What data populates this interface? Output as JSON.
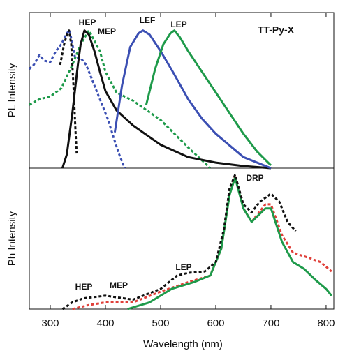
{
  "chart_data": [
    {
      "type": "line",
      "title": "TT-Py-X",
      "ylabel": "PL Intensity",
      "xlim": [
        262,
        814
      ],
      "ylim": [
        0,
        1.13
      ],
      "annotations": [
        "HEP",
        "MEP",
        "LEF",
        "LEP"
      ],
      "series": [
        {
          "color": "#3b4fb3",
          "dash": true,
          "x": [
            262,
            270,
            280,
            290,
            300,
            310,
            320,
            330,
            335,
            345,
            355,
            365,
            375,
            385,
            395,
            405,
            415,
            425,
            435
          ],
          "values": [
            0.72,
            0.75,
            0.82,
            0.78,
            0.77,
            0.85,
            0.9,
            0.98,
            1.0,
            0.8,
            0.8,
            0.75,
            0.65,
            0.55,
            0.45,
            0.35,
            0.22,
            0.1,
            0
          ]
        },
        {
          "color": "#1e9a4a",
          "dash": true,
          "x": [
            262,
            280,
            300,
            320,
            340,
            355,
            370,
            390,
            400,
            420,
            450,
            500,
            550,
            590
          ],
          "values": [
            0.46,
            0.5,
            0.52,
            0.58,
            0.75,
            0.9,
            1.0,
            0.85,
            0.7,
            0.55,
            0.49,
            0.35,
            0.15,
            0
          ]
        },
        {
          "color": "#111111",
          "dash": true,
          "x": [
            318,
            325,
            330,
            334,
            338,
            342,
            346,
            348
          ],
          "values": [
            0.75,
            0.9,
            0.97,
            1.0,
            0.9,
            0.6,
            0.25,
            0.1
          ]
        },
        {
          "color": "#111111",
          "dash": false,
          "x": [
            322,
            330,
            340,
            350,
            355,
            362,
            370,
            380,
            390,
            400,
            420,
            450,
            500,
            550,
            600,
            650,
            700
          ],
          "values": [
            0,
            0.1,
            0.4,
            0.75,
            0.9,
            1.0,
            0.97,
            0.85,
            0.7,
            0.56,
            0.42,
            0.31,
            0.17,
            0.08,
            0.04,
            0.015,
            0
          ]
        },
        {
          "color": "#3b4fb3",
          "dash": false,
          "x": [
            417,
            430,
            445,
            460,
            468,
            480,
            500,
            525,
            550,
            575,
            600,
            650,
            700
          ],
          "values": [
            0.26,
            0.6,
            0.88,
            0.98,
            1.0,
            0.97,
            0.85,
            0.68,
            0.5,
            0.36,
            0.25,
            0.08,
            0
          ]
        },
        {
          "color": "#1e9a4a",
          "dash": false,
          "x": [
            474,
            490,
            505,
            518,
            525,
            535,
            550,
            575,
            600,
            625,
            650,
            675,
            700
          ],
          "values": [
            0.46,
            0.72,
            0.9,
            0.98,
            1.0,
            0.95,
            0.85,
            0.7,
            0.55,
            0.4,
            0.25,
            0.12,
            0.02
          ]
        }
      ]
    },
    {
      "type": "line",
      "ylabel": "Ph Intensity",
      "xlabel": "Wavelength (nm)",
      "xlim": [
        262,
        814
      ],
      "ylim": [
        0,
        1.05
      ],
      "xticks": [
        300,
        400,
        500,
        600,
        700,
        800
      ],
      "annotations": [
        "HEP",
        "MEP",
        "LEP",
        "DRP"
      ],
      "series": [
        {
          "color": "#e0403a",
          "dash": true,
          "x": [
            340,
            370,
            400,
            450,
            500,
            550,
            590,
            610,
            625,
            635,
            650,
            665,
            690,
            700,
            720,
            740,
            770,
            790,
            810
          ],
          "values": [
            0,
            0.03,
            0.05,
            0.05,
            0.13,
            0.2,
            0.25,
            0.45,
            0.85,
            1.0,
            0.75,
            0.65,
            0.78,
            0.78,
            0.55,
            0.42,
            0.38,
            0.35,
            0.28
          ]
        },
        {
          "color": "#1e9a4a",
          "dash": false,
          "x": [
            440,
            480,
            520,
            560,
            590,
            610,
            625,
            635,
            650,
            665,
            690,
            700,
            720,
            740,
            760,
            780,
            800,
            810
          ],
          "values": [
            0,
            0.05,
            0.15,
            0.2,
            0.25,
            0.45,
            0.85,
            0.98,
            0.75,
            0.65,
            0.75,
            0.75,
            0.5,
            0.35,
            0.3,
            0.22,
            0.15,
            0.1
          ]
        },
        {
          "color": "#111111",
          "dash": true,
          "x": [
            322,
            340,
            360,
            400,
            450,
            500,
            530,
            550,
            580,
            600,
            615,
            625,
            635,
            650,
            665,
            680,
            700,
            715,
            730,
            745
          ],
          "values": [
            0,
            0.05,
            0.08,
            0.1,
            0.07,
            0.15,
            0.25,
            0.27,
            0.28,
            0.35,
            0.6,
            0.9,
            1.0,
            0.78,
            0.72,
            0.8,
            0.86,
            0.8,
            0.65,
            0.58
          ]
        }
      ]
    }
  ]
}
